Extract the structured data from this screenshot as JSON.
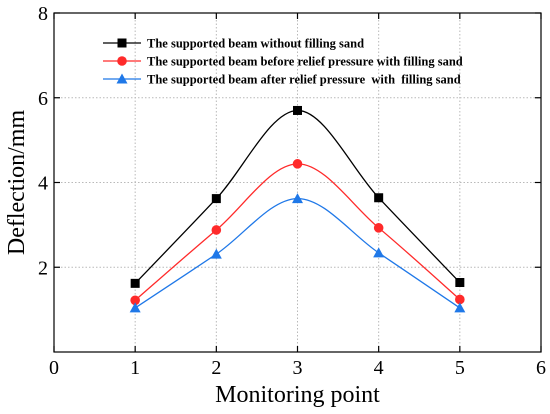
{
  "chart_data": {
    "type": "line",
    "xlabel": "Monitoring point",
    "ylabel": "Deflection/mm",
    "xlim": [
      0,
      6
    ],
    "ylim": [
      0,
      8
    ],
    "xticks": [
      "0",
      "1",
      "2",
      "3",
      "4",
      "5",
      "6"
    ],
    "yticks": [
      "2",
      "4",
      "6",
      "8"
    ],
    "grid": true,
    "smooth": true,
    "legend_position": "top-left",
    "series": [
      {
        "name": "The supported beam without filling sand",
        "color": "#000000",
        "marker": "square",
        "x": [
          1,
          2,
          3,
          4,
          5
        ],
        "y": [
          1.62,
          3.62,
          5.7,
          3.64,
          1.64
        ]
      },
      {
        "name": "The supported beam before relief pressure with filling sand",
        "color": "#ff2a2a",
        "marker": "circle",
        "x": [
          1,
          2,
          3,
          4,
          5
        ],
        "y": [
          1.22,
          2.88,
          4.44,
          2.93,
          1.24
        ]
      },
      {
        "name": "The supported beam after relief pressure  with  filling sand",
        "color": "#1f78e8",
        "marker": "triangle",
        "x": [
          1,
          2,
          3,
          4,
          5
        ],
        "y": [
          1.04,
          2.31,
          3.62,
          2.34,
          1.04
        ]
      }
    ]
  }
}
